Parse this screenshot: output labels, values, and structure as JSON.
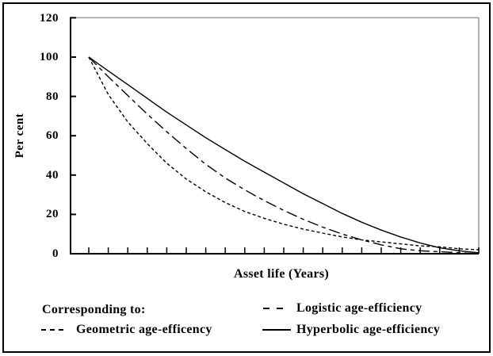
{
  "chart_data": {
    "type": "line",
    "title": "",
    "xlabel": "Asset life (Years)",
    "ylabel": "Per cent",
    "x_years": [
      0,
      1,
      2,
      3,
      4,
      5,
      6,
      7,
      8,
      9,
      10,
      11,
      12,
      13,
      14,
      15,
      16,
      17,
      18,
      19,
      20
    ],
    "series": [
      {
        "name": "Geometric age-efficency",
        "style": "short-dash",
        "values": [
          100,
          81,
          67,
          56,
          46,
          38,
          31.5,
          26,
          21.5,
          18,
          15,
          12.5,
          10.5,
          8.5,
          7,
          6,
          5,
          4,
          3.5,
          2.5,
          2
        ]
      },
      {
        "name": "Logistic age-efficiency",
        "style": "dash-dot",
        "values": [
          100,
          90,
          80.5,
          71,
          62,
          53.5,
          45.5,
          38.5,
          32.5,
          27,
          22,
          17.5,
          13.5,
          10,
          7,
          4.5,
          2.5,
          1.5,
          1,
          0.5,
          0
        ]
      },
      {
        "name": "Hyperbolic age-efficiency",
        "style": "solid",
        "values": [
          100,
          93,
          86,
          79,
          72,
          65.5,
          59,
          53,
          47,
          41.5,
          36,
          30.5,
          25.5,
          20.5,
          16,
          12,
          8.5,
          5.5,
          3,
          1.5,
          0.5
        ]
      }
    ],
    "ylim": [
      0,
      120
    ],
    "ytick_interval": 20,
    "ytick_labels": [
      "120",
      "100",
      "80",
      "60",
      "40",
      "20",
      "0"
    ],
    "xtick_count": 21,
    "x_numeric_labels_shown": false,
    "grid": false,
    "legend_position": "bottom",
    "legend_intro": "Corresponding to:",
    "line_color": "#000000",
    "plot_border_color": "#9a9a9a"
  }
}
